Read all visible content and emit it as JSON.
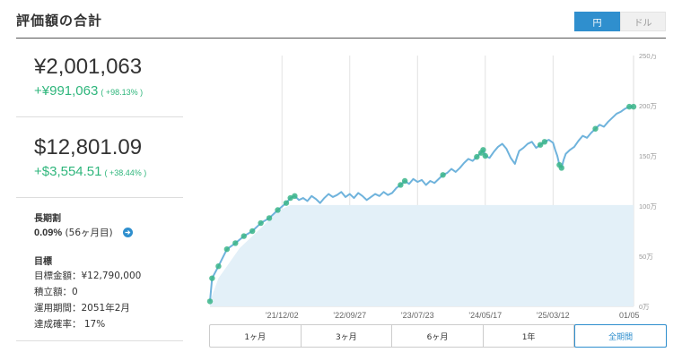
{
  "header": {
    "title": "評価額の合計",
    "currency_options": [
      {
        "label": "円",
        "active": true
      },
      {
        "label": "ドル",
        "active": false
      }
    ]
  },
  "summary": {
    "jpy": {
      "value": "¥2,001,063",
      "gain": "+¥991,063",
      "gain_pct": "( +98.13% )"
    },
    "usd": {
      "value": "$12,801.09",
      "gain": "+$3,554.51",
      "gain_pct": "( +38.44% )"
    }
  },
  "long_term": {
    "title": "長期割",
    "rate": "0.09%",
    "months": "(56ヶ月目)"
  },
  "goal": {
    "title": "目標",
    "amount": "目標金額：¥12,790,000",
    "contribution": "積立額：0",
    "period": "運用期間：2051年2月",
    "probability": "達成確率： 17%"
  },
  "period_tabs": [
    {
      "label": "1ヶ月",
      "active": false
    },
    {
      "label": "3ヶ月",
      "active": false
    },
    {
      "label": "6ヶ月",
      "active": false
    },
    {
      "label": "1年",
      "active": false
    },
    {
      "label": "全期間",
      "active": true
    }
  ],
  "colors": {
    "accent": "#2f8fce",
    "gain": "#2fb67c",
    "line": "#6fb3dc",
    "deposit_area": "#e3f0f8",
    "marker": "#3bb58a"
  },
  "chart_data": {
    "type": "line",
    "x_tick_labels": [
      "'21/12/02",
      "'22/09/27",
      "'23/07/23",
      "'24/05/17",
      "'25/03/12",
      "01/05"
    ],
    "y_tick_labels": [
      "250万",
      "200万",
      "150万",
      "100万",
      "50万",
      "0万"
    ],
    "ylim": [
      0,
      250
    ],
    "y_unit": "万",
    "x_positions_index": [
      0.17,
      0.33,
      0.49,
      0.65,
      0.81,
      0.99
    ],
    "deposit_series": {
      "name": "",
      "points": [
        [
          0.0,
          5
        ],
        [
          0.02,
          28
        ],
        [
          0.04,
          40
        ],
        [
          0.07,
          58
        ],
        [
          0.1,
          70
        ],
        [
          0.13,
          82
        ],
        [
          0.16,
          95
        ],
        [
          0.19,
          101
        ],
        [
          1.0,
          101
        ]
      ]
    },
    "value_series": {
      "name": "",
      "points": [
        [
          0.0,
          5
        ],
        [
          0.005,
          28
        ],
        [
          0.02,
          40
        ],
        [
          0.04,
          57
        ],
        [
          0.06,
          63
        ],
        [
          0.08,
          70
        ],
        [
          0.1,
          75
        ],
        [
          0.12,
          83
        ],
        [
          0.14,
          88
        ],
        [
          0.16,
          96
        ],
        [
          0.18,
          103
        ],
        [
          0.19,
          108
        ],
        [
          0.2,
          110
        ],
        [
          0.21,
          106
        ],
        [
          0.22,
          108
        ],
        [
          0.23,
          105
        ],
        [
          0.24,
          110
        ],
        [
          0.25,
          107
        ],
        [
          0.26,
          103
        ],
        [
          0.27,
          108
        ],
        [
          0.28,
          112
        ],
        [
          0.29,
          109
        ],
        [
          0.3,
          111
        ],
        [
          0.31,
          114
        ],
        [
          0.32,
          109
        ],
        [
          0.33,
          112
        ],
        [
          0.34,
          108
        ],
        [
          0.35,
          113
        ],
        [
          0.36,
          110
        ],
        [
          0.37,
          106
        ],
        [
          0.38,
          109
        ],
        [
          0.39,
          112
        ],
        [
          0.4,
          110
        ],
        [
          0.41,
          114
        ],
        [
          0.42,
          111
        ],
        [
          0.43,
          113
        ],
        [
          0.44,
          118
        ],
        [
          0.45,
          121
        ],
        [
          0.46,
          125
        ],
        [
          0.47,
          122
        ],
        [
          0.48,
          127
        ],
        [
          0.49,
          124
        ],
        [
          0.5,
          126
        ],
        [
          0.51,
          121
        ],
        [
          0.52,
          125
        ],
        [
          0.53,
          123
        ],
        [
          0.54,
          127
        ],
        [
          0.55,
          131
        ],
        [
          0.56,
          133
        ],
        [
          0.57,
          137
        ],
        [
          0.58,
          134
        ],
        [
          0.59,
          138
        ],
        [
          0.6,
          143
        ],
        [
          0.61,
          147
        ],
        [
          0.62,
          145
        ],
        [
          0.63,
          149
        ],
        [
          0.64,
          153
        ],
        [
          0.645,
          156
        ],
        [
          0.65,
          150
        ],
        [
          0.66,
          148
        ],
        [
          0.67,
          154
        ],
        [
          0.68,
          159
        ],
        [
          0.69,
          162
        ],
        [
          0.7,
          157
        ],
        [
          0.71,
          148
        ],
        [
          0.72,
          142
        ],
        [
          0.725,
          149
        ],
        [
          0.73,
          155
        ],
        [
          0.74,
          158
        ],
        [
          0.75,
          162
        ],
        [
          0.76,
          164
        ],
        [
          0.77,
          158
        ],
        [
          0.78,
          161
        ],
        [
          0.79,
          164
        ],
        [
          0.8,
          166
        ],
        [
          0.81,
          163
        ],
        [
          0.815,
          156
        ],
        [
          0.82,
          150
        ],
        [
          0.825,
          141
        ],
        [
          0.83,
          138
        ],
        [
          0.835,
          146
        ],
        [
          0.84,
          152
        ],
        [
          0.85,
          156
        ],
        [
          0.86,
          159
        ],
        [
          0.87,
          165
        ],
        [
          0.88,
          170
        ],
        [
          0.89,
          168
        ],
        [
          0.9,
          173
        ],
        [
          0.91,
          177
        ],
        [
          0.92,
          181
        ],
        [
          0.93,
          179
        ],
        [
          0.94,
          184
        ],
        [
          0.95,
          188
        ],
        [
          0.96,
          192
        ],
        [
          0.97,
          194
        ],
        [
          0.98,
          197
        ],
        [
          0.99,
          199
        ],
        [
          1.0,
          199
        ]
      ]
    }
  }
}
